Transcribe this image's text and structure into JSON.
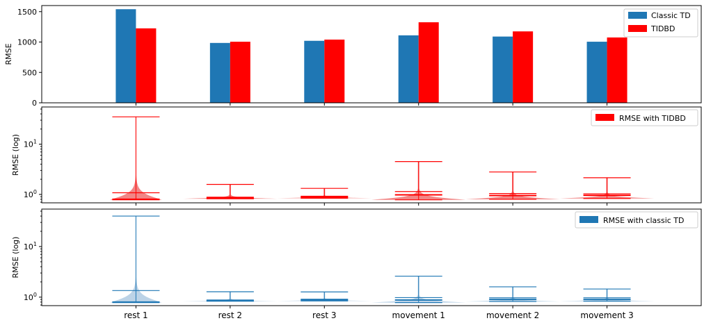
{
  "chart_data": [
    {
      "type": "bar",
      "categories": [
        "rest 1",
        "rest 2",
        "rest 3",
        "movement 1",
        "movement 2",
        "movement 3"
      ],
      "series": [
        {
          "name": "Classic TD",
          "color": "#1f77b4",
          "values": [
            1540,
            985,
            1020,
            1110,
            1090,
            1005
          ]
        },
        {
          "name": "TIDBD",
          "color": "#ff0000",
          "values": [
            1225,
            1005,
            1040,
            1325,
            1175,
            1075
          ]
        }
      ],
      "ylabel": "RMSE",
      "ylim": [
        0,
        1600
      ],
      "yticks": [
        0,
        500,
        1000,
        1500
      ],
      "legend": "top-right"
    },
    {
      "type": "violin",
      "categories": [
        "rest 1",
        "rest 2",
        "rest 3",
        "movement 1",
        "movement 2",
        "movement 3"
      ],
      "series": [
        {
          "name": "RMSE with TIDBD",
          "color": "#ff0000",
          "fill": "#f08080"
        }
      ],
      "ylabel": "RMSE (log)",
      "yscale": "log",
      "ylim": [
        0.68,
        55
      ],
      "ytick_labels": [
        "10^0",
        "10^1"
      ],
      "min": [
        0.78,
        0.82,
        0.84,
        0.78,
        0.8,
        0.83
      ],
      "max": [
        35,
        1.58,
        1.32,
        4.5,
        2.8,
        2.15
      ],
      "mean": [
        1.08,
        0.88,
        0.92,
        1.14,
        1.04,
        1.03
      ],
      "median": [
        0.8,
        0.84,
        0.88,
        0.98,
        0.95,
        0.96
      ],
      "legend": "top-right"
    },
    {
      "type": "violin",
      "categories": [
        "rest 1",
        "rest 2",
        "rest 3",
        "movement 1",
        "movement 2",
        "movement 3"
      ],
      "series": [
        {
          "name": "RMSE with classic TD",
          "color": "#1f77b4",
          "fill": "#b8d1e6"
        }
      ],
      "ylabel": "RMSE (log)",
      "yscale": "log",
      "ylim": [
        0.68,
        55
      ],
      "ytick_labels": [
        "10^0",
        "10^1"
      ],
      "min": [
        0.78,
        0.83,
        0.84,
        0.78,
        0.82,
        0.83
      ],
      "max": [
        40,
        1.28,
        1.27,
        2.6,
        1.6,
        1.45
      ],
      "mean": [
        1.35,
        0.88,
        0.91,
        0.98,
        0.97,
        0.97
      ],
      "median": [
        0.8,
        0.85,
        0.88,
        0.88,
        0.9,
        0.9
      ],
      "legend": "top-right"
    }
  ]
}
